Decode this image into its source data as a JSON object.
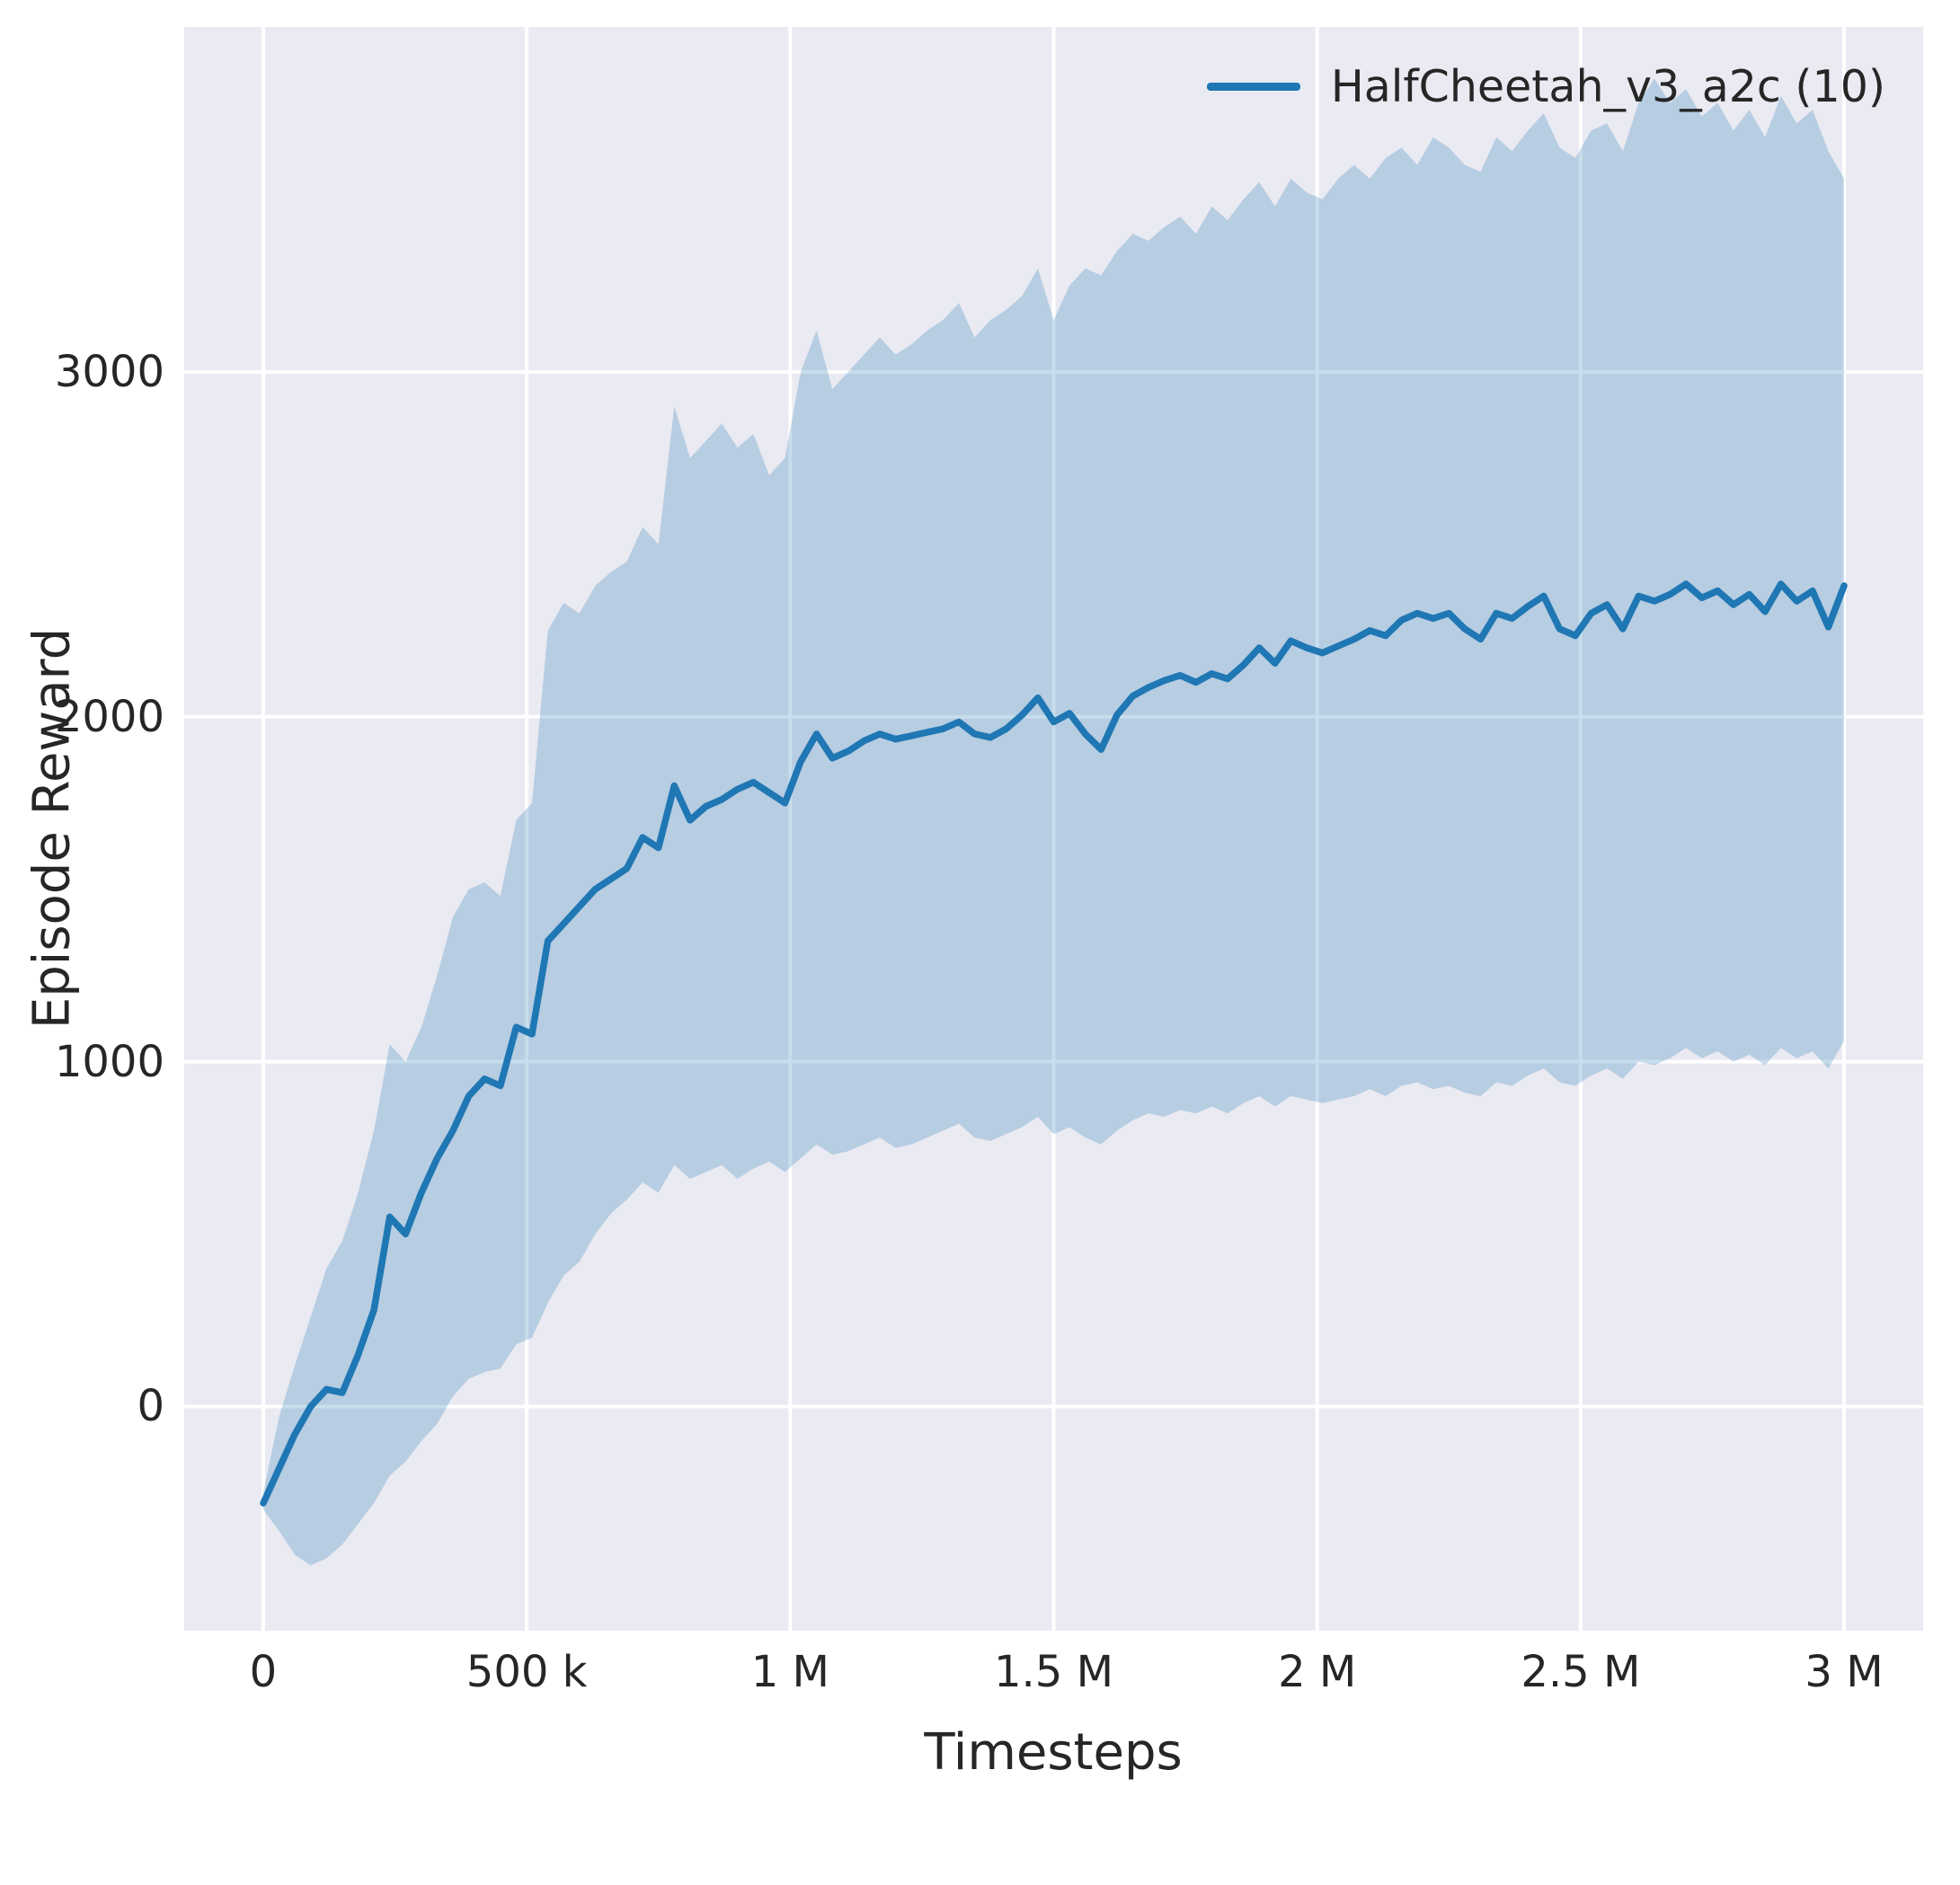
{
  "figure": {
    "background": "#ffffff"
  },
  "chart_data": {
    "type": "line",
    "title": "",
    "xlabel": "Timesteps",
    "ylabel": "Episode Reward",
    "grid": true,
    "legend": {
      "position": "upper right",
      "entries": [
        {
          "label": "HalfCheetah_v3_a2c (10)",
          "color": "#1f77b4"
        }
      ]
    },
    "style": {
      "plot_bg": "#eaeaf2",
      "grid_color": "#ffffff",
      "line_color": "#1f77b4",
      "band_fill": "rgba(31,119,180,0.25)",
      "text_color": "#262626"
    },
    "xlim": [
      -150000,
      3150000
    ],
    "ylim": [
      -650,
      4000
    ],
    "x_ticks": [
      {
        "value": 0,
        "label": "0"
      },
      {
        "value": 500000,
        "label": "500 k"
      },
      {
        "value": 1000000,
        "label": "1 M"
      },
      {
        "value": 1500000,
        "label": "1.5 M"
      },
      {
        "value": 2000000,
        "label": "2 M"
      },
      {
        "value": 2500000,
        "label": "2.5 M"
      },
      {
        "value": 3000000,
        "label": "3 M"
      }
    ],
    "y_ticks": [
      {
        "value": 0,
        "label": "0"
      },
      {
        "value": 1000,
        "label": "1000"
      },
      {
        "value": 2000,
        "label": "2000"
      },
      {
        "value": 3000,
        "label": "3000"
      }
    ],
    "series": [
      {
        "name": "HalfCheetah_v3_a2c (10)",
        "x": [
          0,
          30000,
          60000,
          90000,
          120000,
          150000,
          180000,
          210000,
          240000,
          270000,
          300000,
          330000,
          360000,
          390000,
          420000,
          450000,
          480000,
          510000,
          540000,
          570000,
          600000,
          630000,
          660000,
          690000,
          720000,
          750000,
          780000,
          810000,
          840000,
          870000,
          900000,
          930000,
          960000,
          990000,
          1020000,
          1050000,
          1080000,
          1110000,
          1140000,
          1170000,
          1200000,
          1230000,
          1260000,
          1290000,
          1320000,
          1350000,
          1380000,
          1410000,
          1440000,
          1470000,
          1500000,
          1530000,
          1560000,
          1590000,
          1620000,
          1650000,
          1680000,
          1710000,
          1740000,
          1770000,
          1800000,
          1830000,
          1860000,
          1890000,
          1920000,
          1950000,
          1980000,
          2010000,
          2040000,
          2070000,
          2100000,
          2130000,
          2160000,
          2190000,
          2220000,
          2250000,
          2280000,
          2310000,
          2340000,
          2370000,
          2400000,
          2430000,
          2460000,
          2490000,
          2520000,
          2550000,
          2580000,
          2610000,
          2640000,
          2670000,
          2700000,
          2730000,
          2760000,
          2790000,
          2820000,
          2850000,
          2880000,
          2910000,
          2940000,
          2970000,
          3000000
        ],
        "mean": [
          -280,
          -180,
          -80,
          0,
          50,
          40,
          150,
          280,
          550,
          500,
          620,
          720,
          800,
          900,
          950,
          930,
          1100,
          1080,
          1350,
          1400,
          1450,
          1500,
          1530,
          1560,
          1650,
          1620,
          1800,
          1700,
          1740,
          1760,
          1790,
          1810,
          1780,
          1750,
          1870,
          1950,
          1880,
          1900,
          1930,
          1950,
          1935,
          1945,
          1955,
          1965,
          1985,
          1950,
          1940,
          1965,
          2005,
          2055,
          1985,
          2010,
          1950,
          1905,
          2005,
          2060,
          2085,
          2105,
          2120,
          2100,
          2125,
          2110,
          2150,
          2200,
          2155,
          2220,
          2200,
          2185,
          2205,
          2225,
          2250,
          2235,
          2280,
          2300,
          2285,
          2300,
          2255,
          2225,
          2300,
          2285,
          2320,
          2350,
          2255,
          2235,
          2300,
          2325,
          2255,
          2350,
          2335,
          2355,
          2385,
          2345,
          2365,
          2325,
          2355,
          2305,
          2385,
          2335,
          2365,
          2260,
          2380
        ],
        "band_lower": [
          -300,
          -360,
          -430,
          -460,
          -440,
          -400,
          -340,
          -280,
          -200,
          -160,
          -100,
          -50,
          30,
          80,
          100,
          110,
          180,
          200,
          300,
          380,
          420,
          500,
          560,
          600,
          650,
          620,
          700,
          660,
          680,
          700,
          660,
          690,
          710,
          680,
          720,
          760,
          730,
          740,
          760,
          780,
          750,
          760,
          780,
          800,
          820,
          780,
          770,
          790,
          810,
          840,
          790,
          810,
          780,
          760,
          800,
          830,
          850,
          840,
          860,
          850,
          870,
          850,
          880,
          900,
          870,
          900,
          890,
          880,
          890,
          900,
          920,
          900,
          930,
          940,
          920,
          930,
          910,
          900,
          940,
          930,
          960,
          980,
          940,
          930,
          960,
          980,
          950,
          1000,
          990,
          1010,
          1040,
          1010,
          1030,
          1000,
          1020,
          990,
          1040,
          1010,
          1030,
          980,
          1060
        ],
        "band_upper": [
          -250,
          -30,
          120,
          260,
          400,
          480,
          620,
          800,
          1050,
          1000,
          1100,
          1250,
          1420,
          1500,
          1520,
          1480,
          1700,
          1750,
          2250,
          2330,
          2300,
          2380,
          2420,
          2450,
          2550,
          2500,
          2900,
          2750,
          2800,
          2850,
          2780,
          2820,
          2700,
          2750,
          3000,
          3120,
          2950,
          3000,
          3050,
          3100,
          3050,
          3080,
          3120,
          3150,
          3200,
          3100,
          3150,
          3180,
          3220,
          3300,
          3150,
          3250,
          3300,
          3280,
          3350,
          3400,
          3380,
          3420,
          3450,
          3400,
          3480,
          3440,
          3500,
          3550,
          3480,
          3560,
          3520,
          3500,
          3560,
          3600,
          3560,
          3620,
          3650,
          3600,
          3680,
          3650,
          3600,
          3580,
          3680,
          3640,
          3700,
          3750,
          3650,
          3620,
          3700,
          3720,
          3640,
          3780,
          3850,
          3780,
          3820,
          3740,
          3780,
          3700,
          3760,
          3680,
          3800,
          3720,
          3760,
          3640,
          3560
        ]
      }
    ]
  }
}
